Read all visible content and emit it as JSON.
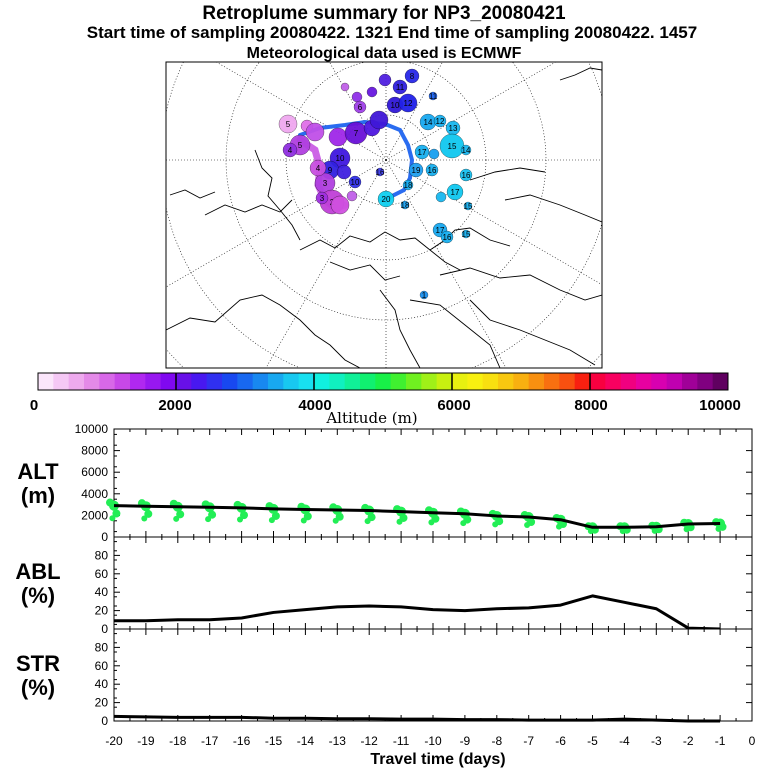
{
  "header": {
    "title": "Retroplume summary for NP3_20080421",
    "subtitle": "Start time of sampling 20080422.  1321     End time of sampling 20080422.  1457",
    "meteo": "Meteorological data used is ECMWF"
  },
  "colorbar": {
    "label": "Altitude (m)",
    "ticks": [
      "0",
      "2000",
      "4000",
      "6000",
      "8000",
      "10000"
    ],
    "colors": [
      "#fbe6fb",
      "#f5c8f5",
      "#eeaaee",
      "#e48ae8",
      "#d868e8",
      "#c848e8",
      "#b028f0",
      "#9818f0",
      "#8008f0",
      "#6810e8",
      "#4818f0",
      "#3030f0",
      "#1848f0",
      "#1868f0",
      "#1888f0",
      "#18a8f0",
      "#18c8f0",
      "#18e0f0",
      "#10f0e0",
      "#10f0c0",
      "#10f098",
      "#10f070",
      "#18f048",
      "#40f030",
      "#70f020",
      "#a0f018",
      "#c8f010",
      "#e8f010",
      "#f8f010",
      "#f8e010",
      "#f8c810",
      "#f8b010",
      "#f89010",
      "#f87010",
      "#f85010",
      "#f82010",
      "#f80040",
      "#f80060",
      "#f00080",
      "#e800a0",
      "#d800b0",
      "#c000b0",
      "#a00098",
      "#800080",
      "#600060"
    ]
  },
  "map": {
    "label_numbers": [
      "1",
      "2",
      "3",
      "4",
      "5",
      "6",
      "7",
      "8",
      "9",
      "10",
      "11",
      "12",
      "13",
      "14",
      "15",
      "16",
      "17",
      "18",
      "19",
      "20"
    ]
  },
  "chart_data": [
    {
      "type": "line",
      "name": "ALT",
      "ylabel": "ALT\n(m)",
      "ylabel_lines": [
        "ALT",
        "(m)"
      ],
      "ylim": [
        0,
        10000
      ],
      "yticks": [
        "0",
        "2000",
        "4000",
        "6000",
        "8000",
        "10000"
      ],
      "x": [
        -20,
        -19,
        -18,
        -17,
        -16,
        -15,
        -14,
        -13,
        -12,
        -11,
        -10,
        -9,
        -8,
        -7,
        -6,
        -5,
        -4,
        -3,
        -2,
        -1
      ],
      "values": [
        2900,
        2850,
        2800,
        2750,
        2700,
        2600,
        2550,
        2500,
        2450,
        2350,
        2250,
        2150,
        1950,
        1850,
        1600,
        900,
        900,
        950,
        1200,
        1250
      ],
      "scatter_color": "#22ee55"
    },
    {
      "type": "line",
      "name": "ABL",
      "ylabel_lines": [
        "ABL",
        "(%)"
      ],
      "ylim": [
        0,
        100
      ],
      "yticks": [
        "0",
        "20",
        "40",
        "60",
        "80"
      ],
      "x": [
        -20,
        -19,
        -18,
        -17,
        -16,
        -15,
        -14,
        -13,
        -12,
        -11,
        -10,
        -9,
        -8,
        -7,
        -6,
        -5,
        -4,
        -3,
        -2,
        -1
      ],
      "values": [
        9,
        9,
        10,
        10,
        12,
        18,
        21,
        24,
        25,
        24,
        21,
        20,
        22,
        23,
        26,
        36,
        29,
        22,
        1,
        0
      ]
    },
    {
      "type": "line",
      "name": "STR",
      "ylabel_lines": [
        "STR",
        "(%)"
      ],
      "ylim": [
        0,
        100
      ],
      "yticks": [
        "0",
        "20",
        "40",
        "60",
        "80"
      ],
      "x": [
        -20,
        -19,
        -18,
        -17,
        -16,
        -15,
        -14,
        -13,
        -12,
        -11,
        -10,
        -9,
        -8,
        -7,
        -6,
        -5,
        -4,
        -3,
        -2,
        -1
      ],
      "values": [
        5,
        4.5,
        4,
        4,
        4,
        3,
        3,
        2.5,
        2.5,
        2,
        2,
        1.5,
        1.5,
        1,
        1,
        1,
        2,
        1,
        0,
        0
      ]
    }
  ],
  "xaxis": {
    "label": "Travel time (days)",
    "ticks": [
      "-20",
      "-19",
      "-18",
      "-17",
      "-16",
      "-15",
      "-14",
      "-13",
      "-12",
      "-11",
      "-10",
      "-9",
      "-8",
      "-7",
      "-6",
      "-5",
      "-4",
      "-3",
      "-2",
      "-1",
      "0"
    ]
  }
}
